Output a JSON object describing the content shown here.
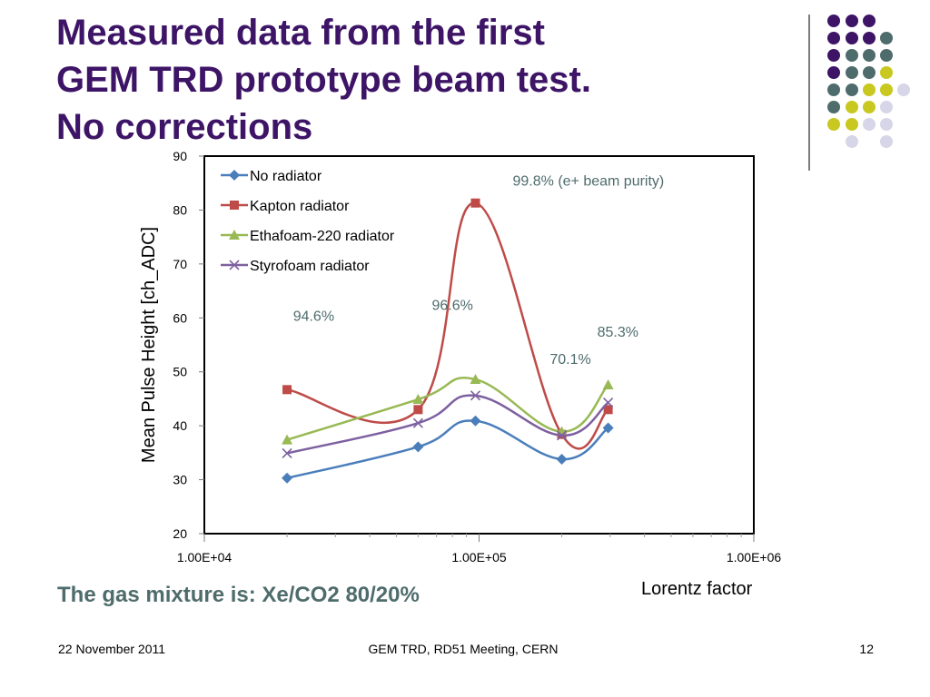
{
  "slide": {
    "title_lines": [
      "Measured data from the first",
      "GEM TRD prototype beam test.",
      "No corrections"
    ],
    "gas_mixture": "The gas mixture is: Xe/CO2 80/20%",
    "footer_date": "22 November 2011",
    "footer_center": "GEM TRD,  RD51 Meeting, CERN",
    "page_number": "12"
  },
  "colors": {
    "title": "#3d1466",
    "dot_palette": [
      "#3d1466",
      "#4f6c6c",
      "#c8c820",
      "#d6d6e8"
    ]
  },
  "chart_data": {
    "type": "line",
    "xlabel": "Lorentz factor",
    "ylabel": "Mean  Pulse Height [ch_ADC]",
    "x_scale": "log",
    "xlim": [
      10000,
      1000000
    ],
    "ylim": [
      20,
      90
    ],
    "x_ticks": [
      "1.00E+04",
      "1.00E+05",
      "1.00E+06"
    ],
    "y_ticks": [
      20,
      30,
      40,
      50,
      60,
      70,
      80,
      90
    ],
    "grid": false,
    "legend_position": "top-left",
    "x": [
      20000,
      60000,
      97000,
      200000,
      295000
    ],
    "series": [
      {
        "name": "No radiator",
        "color": "#4a7ebb",
        "marker": "diamond",
        "values": [
          30.3,
          36.1,
          40.9,
          33.8,
          39.6
        ]
      },
      {
        "name": "Kapton radiator",
        "color": "#be4b48",
        "marker": "square",
        "values": [
          46.7,
          43.0,
          81.3,
          38.4,
          43.0
        ]
      },
      {
        "name": "Ethafoam-220 radiator",
        "color": "#98b954",
        "marker": "triangle",
        "values": [
          37.4,
          44.9,
          48.6,
          38.9,
          47.6
        ]
      },
      {
        "name": "Styrofoam radiator",
        "color": "#7d60a0",
        "marker": "x",
        "values": [
          34.9,
          40.5,
          45.6,
          38.2,
          44.3
        ]
      }
    ],
    "annotations": [
      {
        "text": "94.6%",
        "x": 25000,
        "y": 59.5
      },
      {
        "text": "96.6%",
        "x": 80000,
        "y": 61.5
      },
      {
        "text": "99.8% (e+ beam purity)",
        "x": 250000,
        "y": 84.5
      },
      {
        "text": "70.1%",
        "x": 215000,
        "y": 51.5
      },
      {
        "text": "85.3%",
        "x": 320000,
        "y": 56.5
      }
    ],
    "annotation_color": "#4f6c6c"
  }
}
